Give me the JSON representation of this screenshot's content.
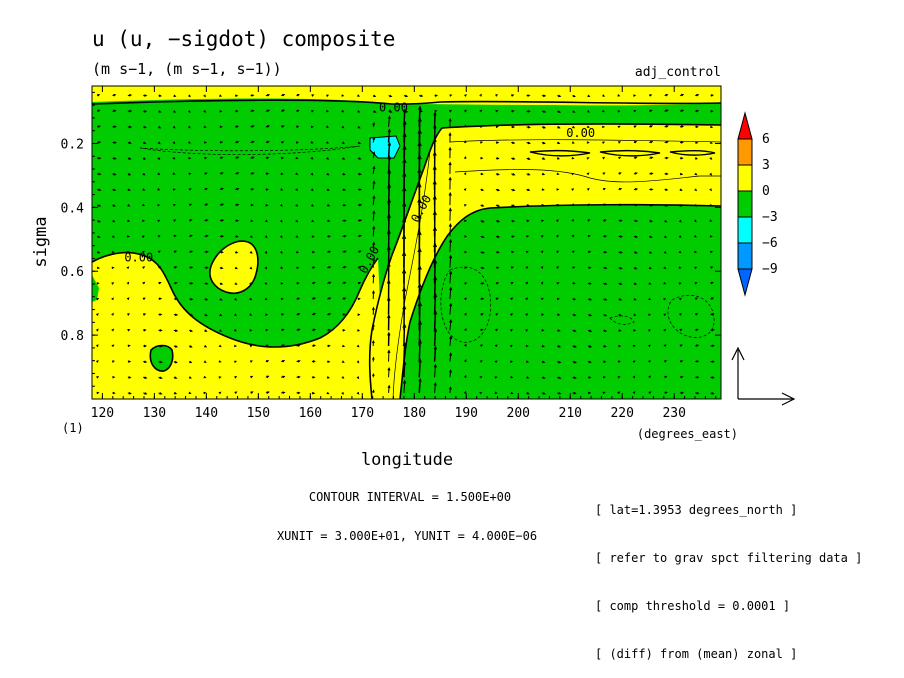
{
  "chart_data": {
    "type": "contour",
    "title": "u (u, −sigdot) composite",
    "subtitle": "(m s−1, (m s−1, s−1))",
    "experiment": "adj_control",
    "xlabel": "longitude",
    "xunits": "(degrees_east)",
    "ylabel": "sigma",
    "xlim": [
      118,
      239
    ],
    "ylim": [
      1.0,
      0.02
    ],
    "y_inverted": true,
    "x_ticks": [
      120,
      130,
      140,
      150,
      160,
      170,
      180,
      190,
      200,
      210,
      220,
      230
    ],
    "y_ticks": [
      0.2,
      0.4,
      0.6,
      0.8
    ],
    "y_tick_labels": [
      "0.2",
      "0.4",
      "0.6",
      "0.8"
    ],
    "lower_left_label": "(1)",
    "contour_labels": [
      {
        "text": "0.00",
        "x": 176,
        "y": 0.1
      },
      {
        "text": "0.00",
        "x": 212,
        "y": 0.18
      },
      {
        "text": "0.00",
        "x": 127,
        "y": 0.57
      },
      {
        "text": "0.00",
        "x": 172,
        "y": 0.57
      },
      {
        "text": "0.00",
        "x": 182,
        "y": 0.41
      }
    ],
    "colorbar": {
      "levels": [
        "6",
        "3",
        "0",
        "−3",
        "−6",
        "−9"
      ],
      "colors": [
        "#ff0000",
        "#ff9900",
        "#ffff00",
        "#00cc00",
        "#00ffff",
        "#0099ff",
        "#0066ff"
      ]
    },
    "filled_regions": [
      {
        "name": "positive-wind-region",
        "color": "#ffff00"
      },
      {
        "name": "negative-wind-region",
        "color": "#00cc00"
      },
      {
        "name": "strong-negative-region",
        "color": "#00ffff"
      }
    ],
    "vector_scale": {
      "xunit": 30.0,
      "yunit": 4e-06
    },
    "contour_interval": 1.5,
    "texts": {
      "contour_interval": "CONTOUR INTERVAL = 1.500E+00",
      "units": "XUNIT = 3.000E+01, YUNIT = 4.000E−06",
      "meta": [
        "[ lat=1.3953 degrees_north ]",
        "[ refer to grav spct filtering data ]",
        "[ comp threshold = 0.0001 ]",
        "[ (diff) from (mean) zonal ]"
      ]
    }
  }
}
